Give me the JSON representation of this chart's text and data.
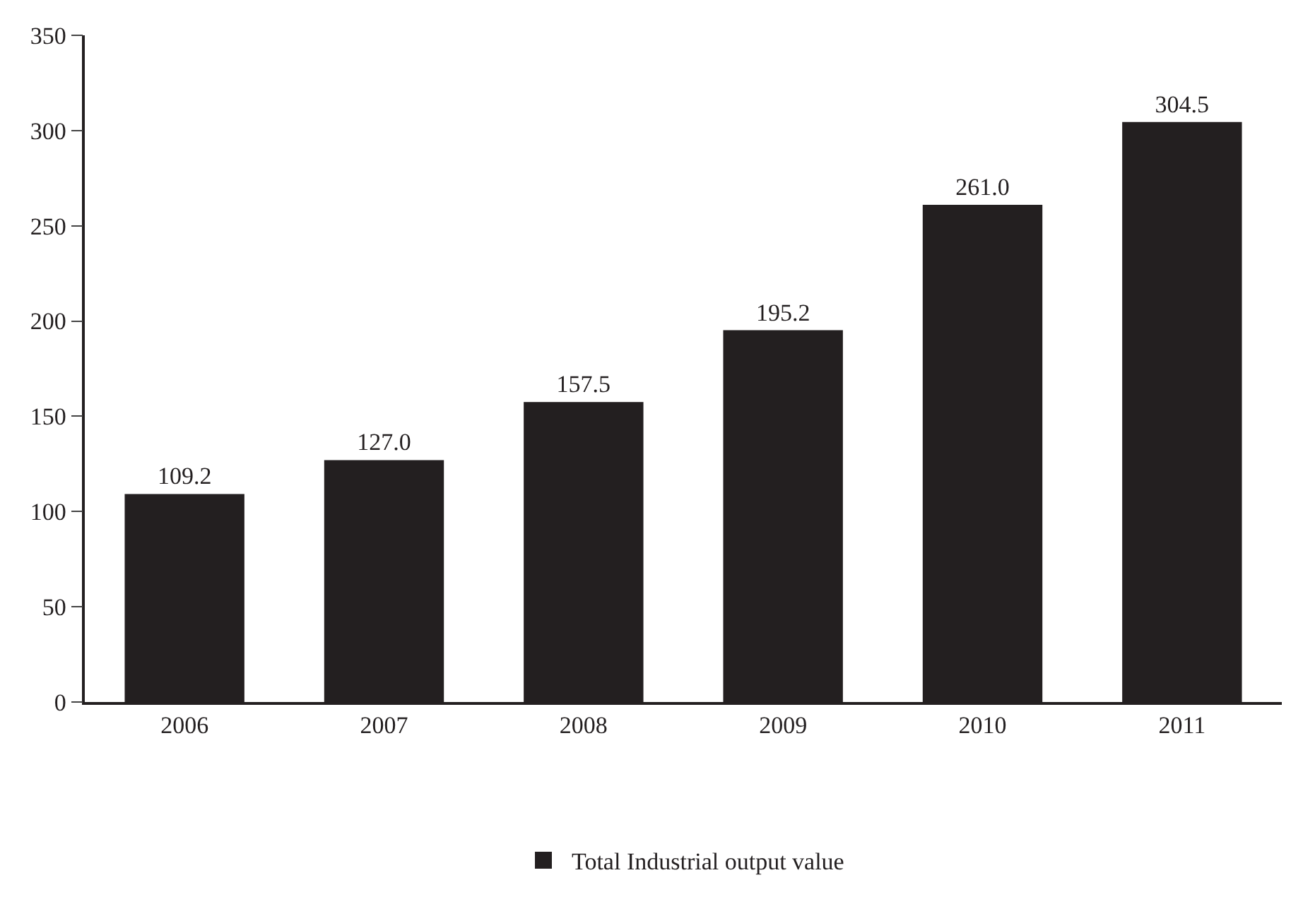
{
  "chart_data": {
    "type": "bar",
    "categories": [
      "2006",
      "2007",
      "2008",
      "2009",
      "2010",
      "2011"
    ],
    "series": [
      {
        "name": "Total Industrial output value",
        "color": "#231f20",
        "values": [
          109.2,
          127.0,
          157.5,
          195.2,
          261.0,
          304.5
        ],
        "value_labels": [
          "109.2",
          "127.0",
          "157.5",
          "195.2",
          "261.0",
          "304.5"
        ]
      }
    ],
    "ylim": [
      0,
      350
    ],
    "yticks": [
      0,
      50,
      100,
      150,
      200,
      250,
      300,
      350
    ],
    "legend": "bottom"
  }
}
